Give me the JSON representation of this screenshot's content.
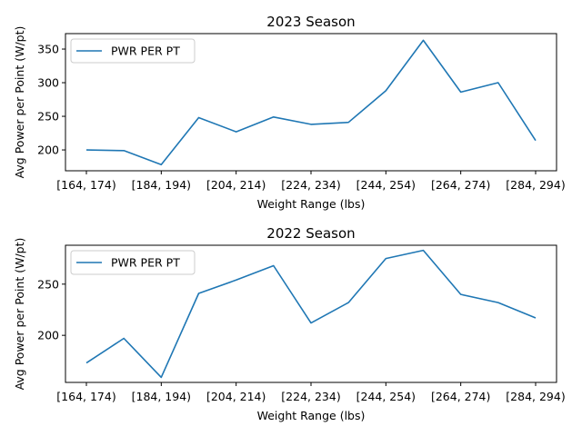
{
  "chart_data": [
    {
      "type": "line",
      "title": "2023 Season",
      "xlabel": "Weight Range (lbs)",
      "ylabel": "Avg Power per Point (W/pt)",
      "x_tick_labels": [
        "[164, 174)",
        "[184, 194)",
        "[204, 214)",
        "[224, 234)",
        "[244, 254)",
        "[264, 274)",
        "[284, 294)"
      ],
      "categories": [
        "[164, 174)",
        "[174, 184)",
        "[184, 194)",
        "[194, 204)",
        "[204, 214)",
        "[214, 224)",
        "[224, 234)",
        "[234, 244)",
        "[244, 254)",
        "[254, 264)",
        "[264, 274)",
        "[274, 284)",
        "[284, 294)"
      ],
      "ylim": [
        169,
        373
      ],
      "yticks": [
        200,
        250,
        300,
        350
      ],
      "legend": "upper left",
      "series": [
        {
          "name": "PWR PER PT",
          "color": "#1f77b4",
          "values": [
            200,
            199,
            178,
            248,
            227,
            249,
            238,
            241,
            288,
            363,
            286,
            300,
            214
          ]
        }
      ]
    },
    {
      "type": "line",
      "title": "2022 Season",
      "xlabel": "Weight Range (lbs)",
      "ylabel": "Avg Power per Point (W/pt)",
      "x_tick_labels": [
        "[164, 174)",
        "[184, 194)",
        "[204, 214)",
        "[224, 234)",
        "[244, 254)",
        "[264, 274)",
        "[284, 294)"
      ],
      "categories": [
        "[164, 174)",
        "[174, 184)",
        "[184, 194)",
        "[194, 204)",
        "[204, 214)",
        "[214, 224)",
        "[224, 234)",
        "[234, 244)",
        "[244, 254)",
        "[254, 264)",
        "[264, 274)",
        "[274, 284)",
        "[284, 294)"
      ],
      "ylim": [
        154,
        288
      ],
      "yticks": [
        200,
        250
      ],
      "legend": "upper left",
      "series": [
        {
          "name": "PWR PER PT",
          "color": "#1f77b4",
          "values": [
            173,
            197,
            159,
            241,
            254,
            268,
            212,
            232,
            275,
            283,
            240,
            232,
            217
          ]
        }
      ]
    }
  ]
}
